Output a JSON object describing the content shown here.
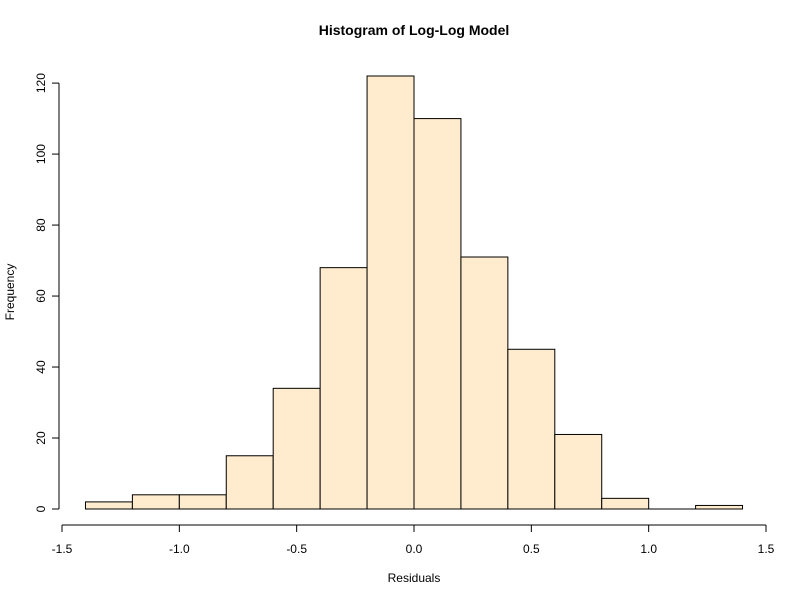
{
  "chart_data": {
    "type": "bar",
    "title": "Histogram of Log-Log Model",
    "xlabel": "Residuals",
    "ylabel": "Frequency",
    "bin_edges": [
      -1.4,
      -1.2,
      -1.0,
      -0.8,
      -0.6,
      -0.4,
      -0.2,
      0.0,
      0.2,
      0.4,
      0.6,
      0.8,
      1.0,
      1.2,
      1.4
    ],
    "values": [
      2,
      4,
      4,
      15,
      34,
      68,
      122,
      110,
      71,
      45,
      21,
      3,
      0,
      1
    ],
    "xlim": [
      -1.5,
      1.5
    ],
    "ylim": [
      0,
      122
    ],
    "x_ticks": [
      -1.5,
      -1.0,
      -0.5,
      0.0,
      0.5,
      1.0,
      1.5
    ],
    "x_tick_labels": [
      "-1.5",
      "-1.0",
      "-0.5",
      "0.0",
      "0.5",
      "1.0",
      "1.5"
    ],
    "y_ticks": [
      0,
      20,
      40,
      60,
      80,
      100,
      120
    ],
    "y_tick_labels": [
      "0",
      "20",
      "40",
      "60",
      "80",
      "100",
      "120"
    ],
    "bar_fill": "#ffebcd",
    "bar_stroke": "#000000",
    "grid": false,
    "legend": "none"
  }
}
